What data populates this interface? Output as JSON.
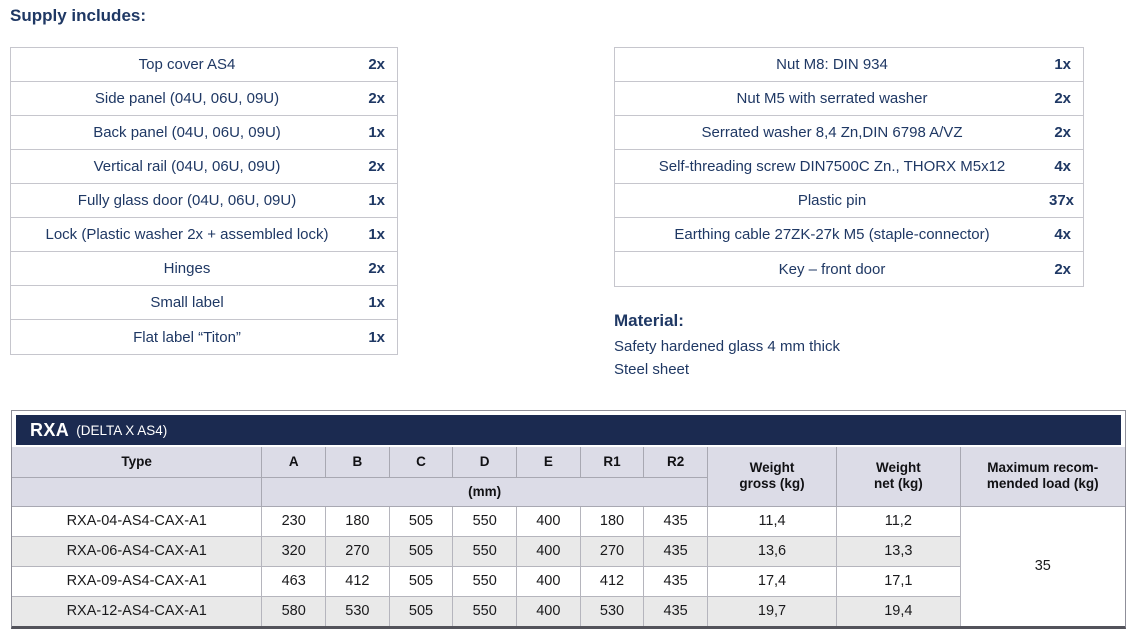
{
  "supply_heading": "Supply includes:",
  "supply_left": [
    {
      "item": "Top cover AS4",
      "qty": "2x"
    },
    {
      "item": "Side panel (04U, 06U, 09U)",
      "qty": "2x"
    },
    {
      "item": "Back panel (04U, 06U, 09U)",
      "qty": "1x"
    },
    {
      "item": "Vertical rail (04U, 06U, 09U)",
      "qty": "2x"
    },
    {
      "item": "Fully glass door (04U, 06U, 09U)",
      "qty": "1x"
    },
    {
      "item": "Lock (Plastic washer 2x + assembled lock)",
      "qty": "1x"
    },
    {
      "item": "Hinges",
      "qty": "2x"
    },
    {
      "item": "Small label",
      "qty": "1x"
    },
    {
      "item": "Flat label “Titon”",
      "qty": "1x"
    }
  ],
  "supply_right": [
    {
      "item": "Nut M8: DIN 934",
      "qty": "1x"
    },
    {
      "item": "Nut M5 with serrated washer",
      "qty": "2x"
    },
    {
      "item": "Serrated washer 8,4 Zn,DIN 6798 A/VZ",
      "qty": "2x"
    },
    {
      "item": "Self-threading screw DIN7500C Zn., THORX M5x12",
      "qty": "4x"
    },
    {
      "item": "Plastic pin",
      "qty": "37x"
    },
    {
      "item": "Earthing cable 27ZK-27k M5 (staple-connector)",
      "qty": "4x"
    },
    {
      "item": "Key – front door",
      "qty": "2x"
    }
  ],
  "material": {
    "heading": "Material:",
    "line1": "Safety hardened glass 4 mm thick",
    "line2": "Steel sheet"
  },
  "spec_table": {
    "title": "RXA",
    "subtitle": "(DELTA X AS4)",
    "headers": {
      "type": "Type",
      "dims": [
        "A",
        "B",
        "C",
        "D",
        "E",
        "R1",
        "R2"
      ],
      "unit": "(mm)",
      "weight_gross": "Weight\ngross (kg)",
      "weight_net": "Weight\nnet (kg)",
      "max_load": "Maximum recom-\nmended load (kg)"
    },
    "rows": [
      {
        "type": "RXA-04-AS4-CAX-A1",
        "a": "230",
        "b": "180",
        "c": "505",
        "d": "550",
        "e": "400",
        "r1": "180",
        "r2": "435",
        "gross": "11,4",
        "net": "11,2"
      },
      {
        "type": "RXA-06-AS4-CAX-A1",
        "a": "320",
        "b": "270",
        "c": "505",
        "d": "550",
        "e": "400",
        "r1": "270",
        "r2": "435",
        "gross": "13,6",
        "net": "13,3"
      },
      {
        "type": "RXA-09-AS4-CAX-A1",
        "a": "463",
        "b": "412",
        "c": "505",
        "d": "550",
        "e": "400",
        "r1": "412",
        "r2": "435",
        "gross": "17,4",
        "net": "17,1"
      },
      {
        "type": "RXA-12-AS4-CAX-A1",
        "a": "580",
        "b": "530",
        "c": "505",
        "d": "550",
        "e": "400",
        "r1": "530",
        "r2": "435",
        "gross": "19,7",
        "net": "19,4"
      }
    ],
    "max_load_value": "35"
  },
  "colors": {
    "navy_text": "#1f3864",
    "header_bar_bg": "#1b2a50",
    "table_header_bg": "#dcdce7",
    "alt_row_bg": "#e9e9e9"
  }
}
